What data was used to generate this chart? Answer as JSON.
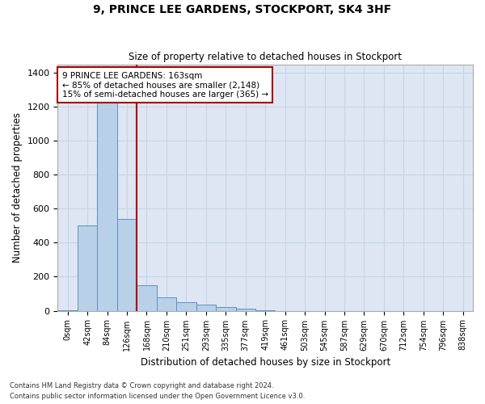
{
  "title": "9, PRINCE LEE GARDENS, STOCKPORT, SK4 3HF",
  "subtitle": "Size of property relative to detached houses in Stockport",
  "xlabel": "Distribution of detached houses by size in Stockport",
  "ylabel": "Number of detached properties",
  "footer_line1": "Contains HM Land Registry data © Crown copyright and database right 2024.",
  "footer_line2": "Contains public sector information licensed under the Open Government Licence v3.0.",
  "bar_labels": [
    "0sqm",
    "42sqm",
    "84sqm",
    "126sqm",
    "168sqm",
    "210sqm",
    "251sqm",
    "293sqm",
    "335sqm",
    "377sqm",
    "419sqm",
    "461sqm",
    "503sqm",
    "545sqm",
    "587sqm",
    "629sqm",
    "670sqm",
    "712sqm",
    "754sqm",
    "796sqm",
    "838sqm"
  ],
  "bar_values": [
    5,
    500,
    1240,
    540,
    150,
    80,
    50,
    35,
    20,
    10,
    5,
    0,
    0,
    0,
    0,
    0,
    0,
    0,
    0,
    0,
    0
  ],
  "bar_color": "#b8d0e8",
  "bar_edge_color": "#6090c0",
  "grid_color": "#c8d4e8",
  "background_color": "#dde6f2",
  "vline_x": 3.5,
  "vline_color": "#aa0000",
  "annotation_text": "9 PRINCE LEE GARDENS: 163sqm\n← 85% of detached houses are smaller (2,148)\n15% of semi-detached houses are larger (365) →",
  "annotation_box_color": "#ffffff",
  "annotation_box_edge": "#aa0000",
  "ylim": [
    0,
    1450
  ],
  "yticks": [
    0,
    200,
    400,
    600,
    800,
    1000,
    1200,
    1400
  ]
}
